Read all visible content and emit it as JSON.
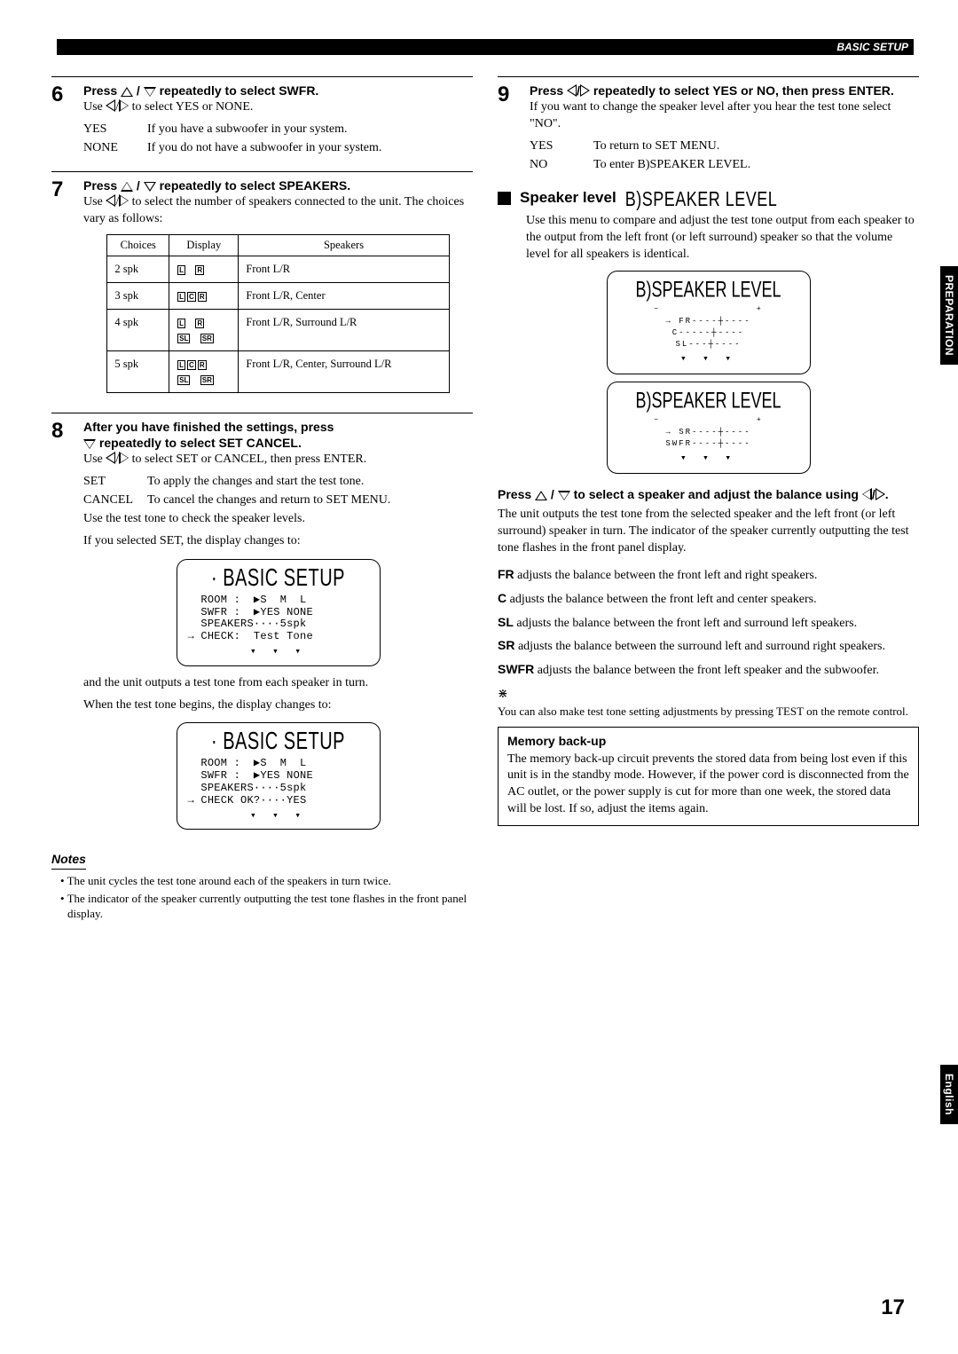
{
  "header": {
    "label": "BASIC SETUP"
  },
  "sideTabs": {
    "prep": "PREPARATION",
    "eng": "English"
  },
  "pageNumber": "17",
  "step6": {
    "num": "6",
    "title_pre": "Press ",
    "title_post": " repeatedly to select SWFR.",
    "use_pre": "Use ",
    "use_post": " to select YES or NONE.",
    "defs": [
      [
        "YES",
        "If you have a subwoofer in your system."
      ],
      [
        "NONE",
        "If you do not have a subwoofer in your system."
      ]
    ]
  },
  "step7": {
    "num": "7",
    "title_pre": "Press ",
    "title_post": " repeatedly to select SPEAKERS.",
    "use_pre": "Use ",
    "use_post": " to select the number of speakers connected to the unit. The choices vary as follows:",
    "table": {
      "headers": [
        "Choices",
        "Display",
        "Speakers"
      ],
      "rows": [
        {
          "choice": "2 spk",
          "disp": [
            [
              "L",
              "R"
            ]
          ],
          "speakers": "Front L/R"
        },
        {
          "choice": "3 spk",
          "disp": [
            [
              "L",
              "C",
              "R"
            ]
          ],
          "speakers": "Front L/R, Center"
        },
        {
          "choice": "4 spk",
          "disp": [
            [
              "L",
              "R"
            ],
            [
              "SL",
              "SR"
            ]
          ],
          "speakers": "Front L/R, Surround L/R"
        },
        {
          "choice": "5 spk",
          "disp": [
            [
              "L",
              "C",
              "R"
            ],
            [
              "SL",
              "SR"
            ]
          ],
          "speakers": "Front L/R, Center, Surround L/R"
        }
      ]
    }
  },
  "step8": {
    "num": "8",
    "title": "After you have finished the settings, press",
    "title2_post": " repeatedly to select SET CANCEL.",
    "use_pre": "Use ",
    "use_post": " to select SET or CANCEL, then press ENTER.",
    "defs": [
      [
        "SET",
        "To apply the changes and start the test tone."
      ],
      [
        "CANCEL",
        "To cancel the changes and return to SET MENU."
      ]
    ],
    "para2": "Use the test tone to check the speaker levels.",
    "para3": "If you selected SET, the display changes to:",
    "lcd1": {
      "title": "· BASIC SETUP",
      "lines": [
        "  ROOM :  ▶S  M  L",
        "  SWFR :  ▶YES NONE",
        "  SPEAKERS····5spk",
        "→ CHECK:  Test Tone"
      ]
    },
    "para4": "and the unit outputs a test tone from each speaker in turn.",
    "para5": "When the test tone begins, the display changes to:",
    "lcd2": {
      "title": "· BASIC SETUP",
      "lines": [
        "  ROOM :  ▶S  M  L",
        "  SWFR :  ▶YES NONE",
        "  SPEAKERS····5spk",
        "→ CHECK OK?····YES"
      ]
    }
  },
  "notes": {
    "heading": "Notes",
    "items": [
      "The unit cycles the test tone around each of the speakers in turn twice.",
      "The indicator of the speaker currently outputting the test tone flashes in the front panel display."
    ]
  },
  "step9": {
    "num": "9",
    "title_pre": "Press ",
    "title_post": " repeatedly to select YES or NO, then press ENTER.",
    "para1": "If you want to change the speaker level after you hear the test tone select \"NO\".",
    "defs": [
      [
        "YES",
        "To return to SET MENU."
      ],
      [
        "NO",
        "To enter B)SPEAKER LEVEL."
      ]
    ]
  },
  "speakerLevel": {
    "heading": "Speaker level",
    "headingLcd": "B)SPEAKER LEVEL",
    "para1": "Use this menu to compare and adjust the test tone output from each speaker to the output from the left front (or left surround) speaker so that the volume level for all speakers is identical.",
    "box1": {
      "title": "B)SPEAKER LEVEL",
      "rows": [
        "→    FR----┼----",
        "      C-----┼----",
        "     SL---┼----"
      ]
    },
    "box2": {
      "title": "B)SPEAKER LEVEL",
      "rows": [
        "→    SR----┼----",
        "  SWFR----┼----"
      ]
    },
    "sub2_pre": "Press ",
    "sub2_mid": " to select a speaker and adjust the balance using ",
    "sub2_post": ".",
    "para2": "The unit outputs the test tone from the selected speaker and the left front (or left surround) speaker in turn. The indicator of the speaker currently outputting the test tone flashes in the front panel display.",
    "adjusts": [
      [
        "FR",
        " adjusts the balance between the front left and right speakers."
      ],
      [
        "C",
        " adjusts the balance between the front left and center speakers."
      ],
      [
        "SL",
        " adjusts the balance between the front left and surround left speakers."
      ],
      [
        "SR",
        " adjusts the balance between the surround left and surround right speakers."
      ],
      [
        "SWFR",
        " adjusts the balance between the front left speaker and the subwoofer."
      ]
    ],
    "tip": "You can also make test tone setting adjustments by pressing TEST on the remote control.",
    "memory": {
      "heading": "Memory back-up",
      "body": "The memory back-up circuit prevents the stored data from being lost even if this unit is in the standby mode. However, if the power cord is disconnected from the AC outlet, or the power supply is cut for more than one week, the stored data will be lost. If so, adjust the items again."
    }
  }
}
